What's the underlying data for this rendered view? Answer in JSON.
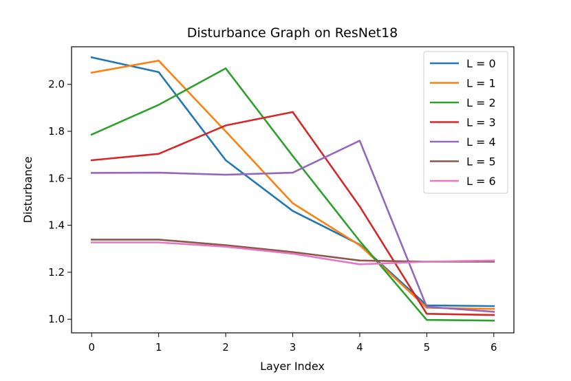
{
  "chart_data": {
    "type": "line",
    "title": "Disturbance Graph on ResNet18",
    "xlabel": "Layer Index",
    "ylabel": "Disturbance",
    "x": [
      0,
      1,
      2,
      3,
      4,
      5,
      6
    ],
    "xlim": [
      -0.3,
      6.3
    ],
    "ylim": [
      0.942,
      2.16
    ],
    "xticks": [
      "0",
      "1",
      "2",
      "3",
      "4",
      "5",
      "6"
    ],
    "yticks": [
      "1.0",
      "1.2",
      "1.4",
      "1.6",
      "1.8",
      "2.0"
    ],
    "ytick_values": [
      1.0,
      1.2,
      1.4,
      1.6,
      1.8,
      2.0
    ],
    "grid": false,
    "legend_position": "top-right",
    "series": [
      {
        "name": "L = 0",
        "color": "#1f77b4",
        "values": [
          2.115,
          2.052,
          1.677,
          1.461,
          1.318,
          1.059,
          1.056
        ]
      },
      {
        "name": "L = 1",
        "color": "#ff7f0e",
        "values": [
          2.05,
          2.101,
          1.8,
          1.494,
          1.315,
          1.049,
          1.044
        ]
      },
      {
        "name": "L = 2",
        "color": "#2ca02c",
        "values": [
          1.786,
          1.913,
          2.068,
          1.695,
          1.333,
          0.997,
          0.994
        ]
      },
      {
        "name": "L = 3",
        "color": "#d62728",
        "values": [
          1.677,
          1.704,
          1.825,
          1.882,
          1.48,
          1.023,
          1.018
        ]
      },
      {
        "name": "L = 4",
        "color": "#9467bd",
        "values": [
          1.623,
          1.624,
          1.615,
          1.624,
          1.76,
          1.053,
          1.032
        ]
      },
      {
        "name": "L = 5",
        "color": "#8c564b",
        "values": [
          1.339,
          1.339,
          1.315,
          1.286,
          1.25,
          1.245,
          1.245
        ]
      },
      {
        "name": "L = 6",
        "color": "#e377c2",
        "values": [
          1.327,
          1.327,
          1.309,
          1.279,
          1.234,
          1.245,
          1.25
        ]
      }
    ]
  }
}
